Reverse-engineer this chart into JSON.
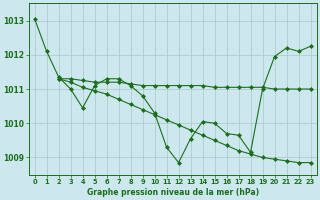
{
  "background_color": "#cce8ee",
  "grid_color": "#b0cccc",
  "line_color": "#1a6e1a",
  "marker_color": "#1a6e1a",
  "title": "Graphe pression niveau de la mer (hPa)",
  "xlim": [
    -0.5,
    23.5
  ],
  "ylim": [
    1008.5,
    1013.5
  ],
  "yticks": [
    1009,
    1010,
    1011,
    1012,
    1013
  ],
  "xticks": [
    0,
    1,
    2,
    3,
    4,
    5,
    6,
    7,
    8,
    9,
    10,
    11,
    12,
    13,
    14,
    15,
    16,
    17,
    18,
    19,
    20,
    21,
    22,
    23
  ],
  "series0_x": [
    0,
    1,
    2,
    3,
    4,
    5,
    6,
    7,
    8,
    9,
    10,
    11,
    12,
    13,
    14,
    15,
    16,
    17,
    18,
    19,
    20,
    21,
    22,
    23
  ],
  "series0_y": [
    1013.05,
    1012.1,
    1011.35,
    1011.0,
    1010.45,
    1011.1,
    1011.3,
    1011.3,
    1011.1,
    1010.8,
    1010.3,
    1009.3,
    1008.85,
    1009.55,
    1010.05,
    1010.0,
    1009.7,
    1009.65,
    1009.15,
    1011.0,
    1011.95,
    1012.2,
    1012.1,
    1012.25
  ],
  "series1_x": [
    2,
    3,
    4,
    5,
    6,
    7,
    8,
    9,
    10,
    11,
    12,
    13,
    14,
    15,
    16,
    17,
    18,
    19,
    20,
    21,
    22,
    23
  ],
  "series1_y": [
    1011.3,
    1011.3,
    1011.25,
    1011.2,
    1011.2,
    1011.2,
    1011.15,
    1011.1,
    1011.1,
    1011.1,
    1011.1,
    1011.1,
    1011.1,
    1011.05,
    1011.05,
    1011.05,
    1011.05,
    1011.05,
    1011.0,
    1011.0,
    1011.0,
    1011.0
  ],
  "series2_x": [
    2,
    3,
    4,
    5,
    6,
    7,
    8,
    9,
    10,
    11,
    12,
    13,
    14,
    15,
    16,
    17,
    18,
    19,
    20,
    21,
    22,
    23
  ],
  "series2_y": [
    1011.3,
    1011.2,
    1011.05,
    1010.95,
    1010.85,
    1010.7,
    1010.55,
    1010.4,
    1010.25,
    1010.1,
    1009.95,
    1009.8,
    1009.65,
    1009.5,
    1009.35,
    1009.2,
    1009.1,
    1009.0,
    1008.95,
    1008.9,
    1008.85,
    1008.85
  ]
}
